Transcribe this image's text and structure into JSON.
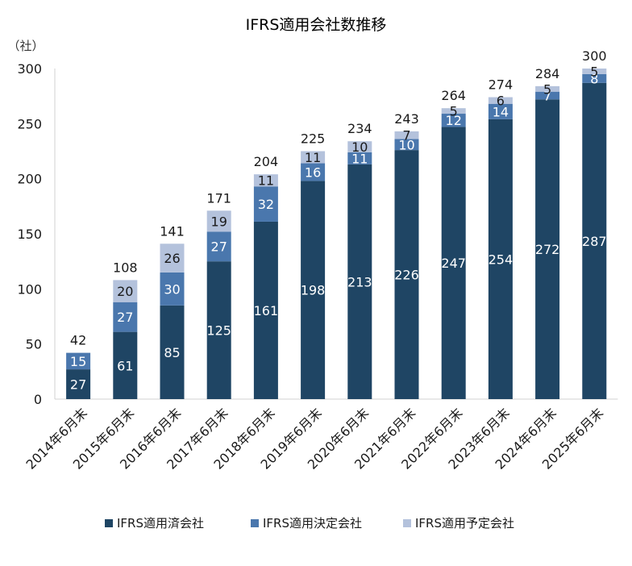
{
  "chart_data": {
    "type": "bar",
    "stacked": true,
    "title": "IFRS適用会社数推移",
    "unit_label": "（社）",
    "ylim": [
      0,
      300
    ],
    "yticks": [
      0,
      50,
      100,
      150,
      200,
      250,
      300
    ],
    "grid": false,
    "legend_position": "bottom",
    "categories": [
      "2014年6月末",
      "2015年6月末",
      "2016年6月末",
      "2017年6月末",
      "2018年6月末",
      "2019年6月末",
      "2020年6月末",
      "2021年6月末",
      "2022年6月末",
      "2023年6月末",
      "2024年6月末",
      "2025年6月末"
    ],
    "series": [
      {
        "name": "IFRS適用済会社",
        "color": "#1f4564",
        "label_color": "#ffffff",
        "values": [
          27,
          61,
          85,
          125,
          161,
          198,
          213,
          226,
          247,
          254,
          272,
          287
        ]
      },
      {
        "name": "IFRS適用決定会社",
        "color": "#4a77ad",
        "label_color": "#ffffff",
        "values": [
          15,
          27,
          30,
          27,
          32,
          16,
          11,
          10,
          12,
          14,
          7,
          8
        ]
      },
      {
        "name": "IFRS適用予定会社",
        "color": "#b4c2dc",
        "label_color": "#1a1a1a",
        "values": [
          0,
          20,
          26,
          19,
          11,
          11,
          10,
          7,
          5,
          6,
          5,
          5
        ]
      }
    ],
    "totals": [
      42,
      108,
      141,
      171,
      204,
      225,
      234,
      243,
      264,
      274,
      284,
      300
    ]
  }
}
